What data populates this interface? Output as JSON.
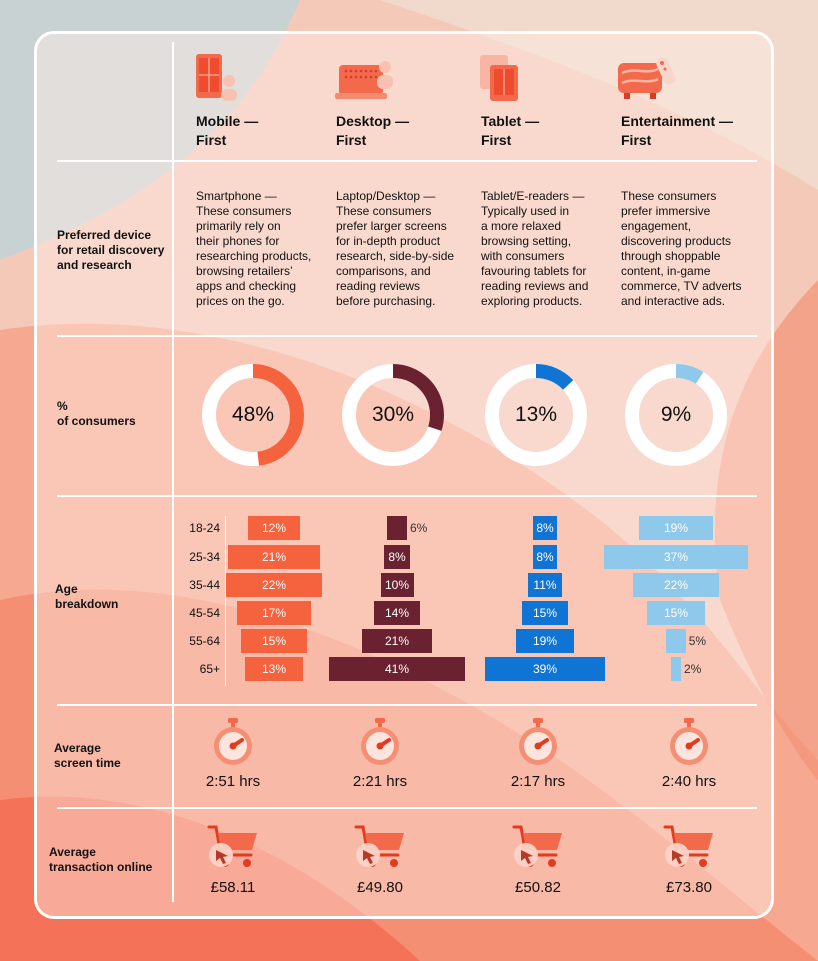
{
  "row_labels": {
    "device": "Preferred device\nfor retail discovery\nand research",
    "consumers": "%\nof consumers",
    "age": "Age\nbreakdown",
    "screen": "Average\nscreen time",
    "transaction": "Average\ntransaction online"
  },
  "segments": [
    {
      "title": "Mobile —\nFirst",
      "description": "Smartphone —\nThese consumers\nprimarily rely on\ntheir phones for\nresearching products,\nbrowsing retailers’\napps and checking\nprices on the go.",
      "share_label": "48%",
      "screen_time": "2:51 hrs",
      "transaction": "£58.11",
      "icon": "mobile-phone-icon"
    },
    {
      "title": "Desktop —\nFirst",
      "description": "Laptop/Desktop —\nThese consumers\nprefer larger screens\nfor in-depth product\nresearch, side-by-side\ncomparisons, and\nreading reviews\nbefore purchasing.",
      "share_label": "30%",
      "screen_time": "2:21 hrs",
      "transaction": "£49.80",
      "icon": "laptop-icon"
    },
    {
      "title": "Tablet —\nFirst",
      "description": "Tablet/E-readers —\nTypically used in\na more relaxed\nbrowsing setting,\nwith consumers\nfavouring tablets for\nreading reviews and\nexploring products.",
      "share_label": "13%",
      "screen_time": "2:17 hrs",
      "transaction": "£50.82",
      "icon": "tablet-icon"
    },
    {
      "title": "Entertainment —\nFirst",
      "description": "These consumers\nprefer immersive\nengagement,\ndiscovering products\nthrough shoppable\ncontent, in-game\ncommerce, TV adverts\nand interactive ads.",
      "share_label": "9%",
      "screen_time": "2:40 hrs",
      "transaction": "£73.80",
      "icon": "tv-remote-icon"
    }
  ],
  "icons": {
    "screen_time": "stopwatch-icon",
    "transaction": "shopping-cart-icon"
  },
  "chart_data": [
    {
      "type": "pie",
      "title": "% of consumers",
      "categories": [
        "Mobile — First",
        "Desktop — First",
        "Tablet — First",
        "Entertainment — First"
      ],
      "values": [
        48,
        30,
        13,
        9
      ],
      "colors": [
        "#f4623e",
        "#6b2230",
        "#0f74d4",
        "#8ec8ea"
      ]
    },
    {
      "type": "bar",
      "title": "Age breakdown",
      "categories": [
        "18-24",
        "25-34",
        "35-44",
        "45-54",
        "55-64",
        "65+"
      ],
      "series": [
        {
          "name": "Mobile — First",
          "values": [
            12,
            21,
            22,
            17,
            15,
            13
          ],
          "labels": [
            "12%",
            "21%",
            "22%",
            "17%",
            "15%",
            "13%"
          ],
          "color": "#f4623e"
        },
        {
          "name": "Desktop — First",
          "values": [
            6,
            8,
            10,
            14,
            21,
            41
          ],
          "labels": [
            "6%",
            "8%",
            "10%",
            "14%",
            "21%",
            "41%"
          ],
          "color": "#6b2230"
        },
        {
          "name": "Tablet — First",
          "values": [
            8,
            8,
            11,
            15,
            19,
            39
          ],
          "labels": [
            "8%",
            "8%",
            "11%",
            "15%",
            "19%",
            "39%"
          ],
          "color": "#0f74d4"
        },
        {
          "name": "Entertainment — First",
          "values": [
            19,
            37,
            22,
            15,
            5,
            2
          ],
          "labels": [
            "19%",
            "37%",
            "22%",
            "15%",
            "5%",
            "2%"
          ],
          "color": "#8ec8ea"
        }
      ]
    }
  ]
}
